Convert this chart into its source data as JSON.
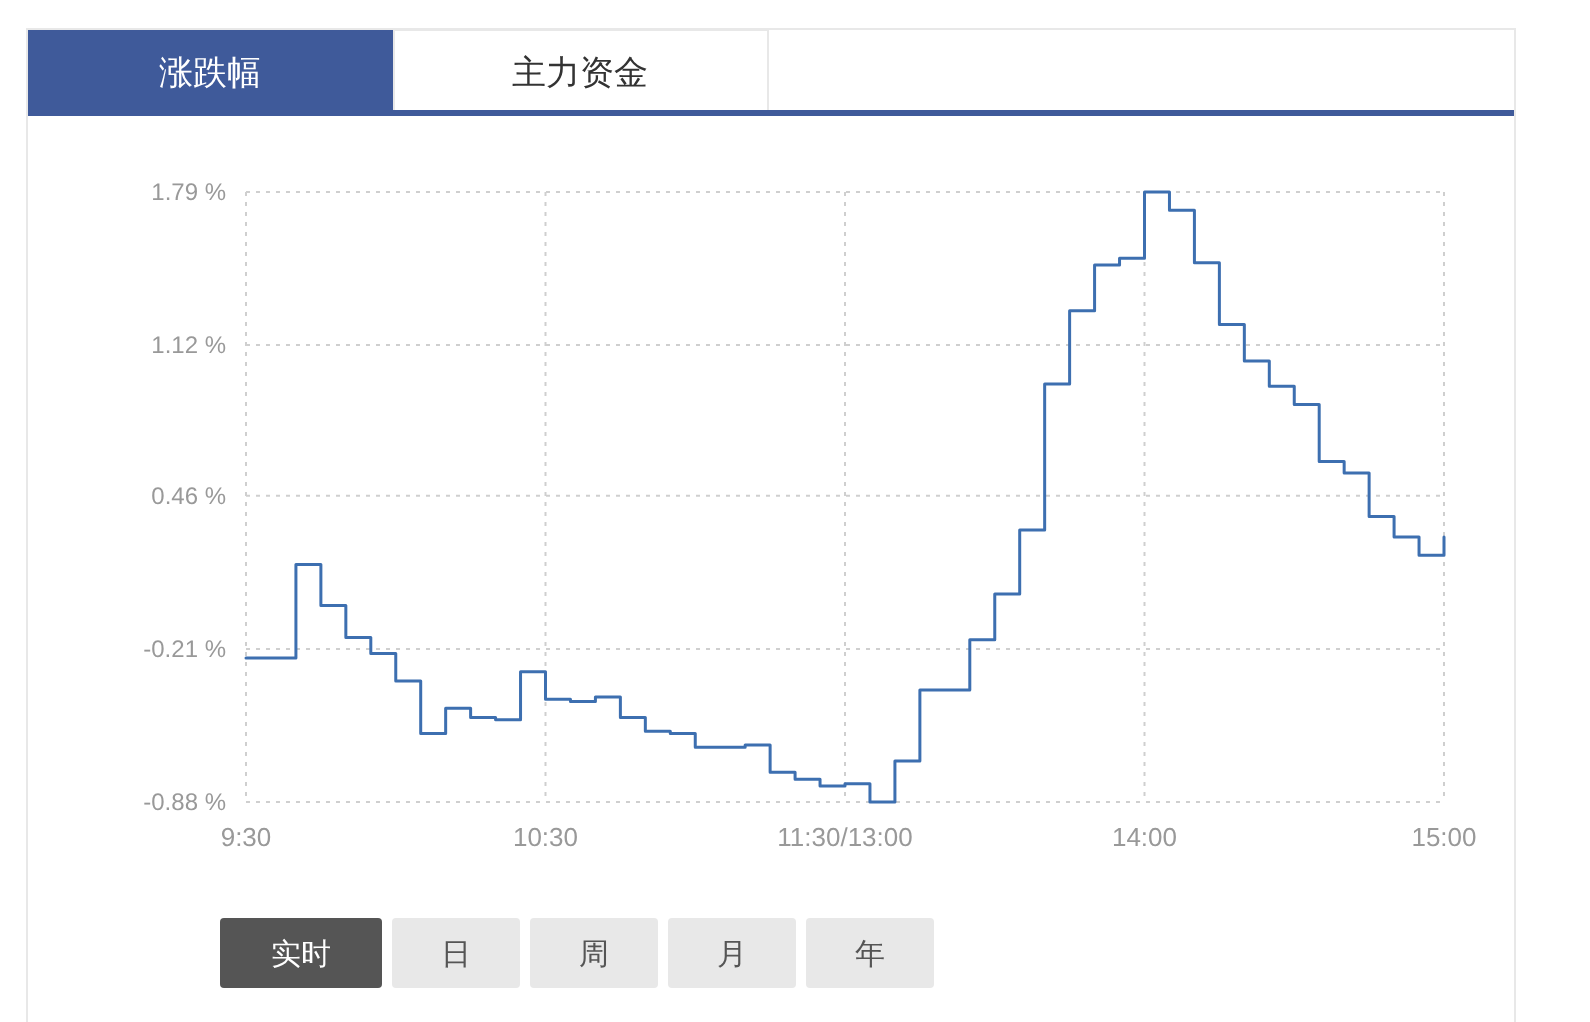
{
  "chart_data": {
    "type": "step",
    "title": "涨跌幅",
    "annotations": [
      "主力资金",
      "实时",
      "日",
      "周",
      "月",
      "年"
    ],
    "categories": [
      "9:30",
      null,
      null,
      null,
      null,
      null,
      null,
      null,
      null,
      null,
      null,
      null,
      "10:30",
      null,
      null,
      null,
      null,
      null,
      null,
      null,
      null,
      null,
      null,
      null,
      "11:30/13:00",
      null,
      null,
      null,
      null,
      null,
      null,
      null,
      null,
      null,
      null,
      null,
      "14:00",
      null,
      null,
      null,
      null,
      null,
      null,
      null,
      null,
      null,
      null,
      null,
      "15:00"
    ],
    "ylim": [
      -0.88,
      1.79
    ],
    "yticks": [
      {
        "value": -0.88,
        "label": "-0.88 %"
      },
      {
        "value": -0.21,
        "label": "-0.21 %"
      },
      {
        "value": 0.46,
        "label": "0.46 %"
      },
      {
        "value": 1.12,
        "label": "1.12 %"
      },
      {
        "value": 1.79,
        "label": "1.79 %"
      }
    ],
    "grid": true,
    "marker": "none",
    "line_style": "solid",
    "series": [
      {
        "color": "#3d6fb0",
        "values": [
          -0.25,
          -0.25,
          0.16,
          -0.02,
          -0.16,
          -0.23,
          -0.35,
          -0.58,
          -0.47,
          -0.51,
          -0.52,
          -0.31,
          -0.43,
          -0.44,
          -0.42,
          -0.51,
          -0.57,
          -0.58,
          -0.64,
          -0.64,
          -0.63,
          -0.75,
          -0.78,
          -0.81,
          -0.8,
          -0.88,
          -0.7,
          -0.39,
          -0.39,
          -0.17,
          0.03,
          0.31,
          0.95,
          1.27,
          1.47,
          1.5,
          1.79,
          1.71,
          1.48,
          1.21,
          1.05,
          0.94,
          0.86,
          0.61,
          0.56,
          0.37,
          0.28,
          0.2,
          0.28
        ]
      }
    ]
  }
}
